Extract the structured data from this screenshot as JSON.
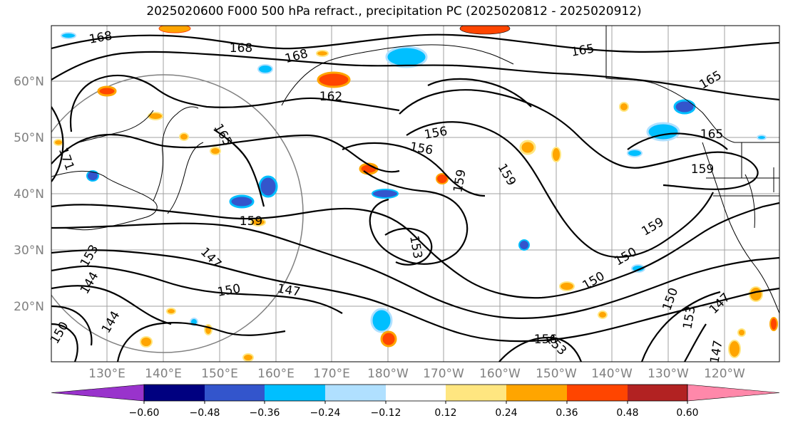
{
  "title": "2025020600 F000 500 hPa refract., precipitation PC (2025020812 - 2025020912)",
  "lat_labels": [
    "60°N",
    "50°N",
    "40°N",
    "30°N",
    "20°N"
  ],
  "lon_labels": [
    "130°E",
    "140°E",
    "150°E",
    "160°E",
    "170°E",
    "180°W",
    "170°W",
    "160°W",
    "150°W",
    "140°W",
    "130°W",
    "120°W"
  ],
  "contour_labels": [
    "168",
    "168",
    "168",
    "165",
    "165",
    "165",
    "162",
    "171",
    "165",
    "156",
    "156",
    "159",
    "159",
    "159",
    "159",
    "159",
    "153",
    "153",
    "150",
    "150",
    "150",
    "150",
    "147",
    "147",
    "147",
    "144",
    "144",
    "153",
    "153",
    "156",
    "150",
    "147"
  ],
  "colorbar": {
    "colors": [
      "#9933cc",
      "#000080",
      "#3355cc",
      "#00bfff",
      "#b0e0ff",
      "#ffffff",
      "#ffe680",
      "#ffa500",
      "#ff4500",
      "#b22222",
      "#ff88aa"
    ],
    "tick_labels": [
      "−0.60",
      "−0.48",
      "−0.36",
      "−0.24",
      "−0.12",
      "0.12",
      "0.24",
      "0.36",
      "0.48",
      "0.60"
    ]
  }
}
